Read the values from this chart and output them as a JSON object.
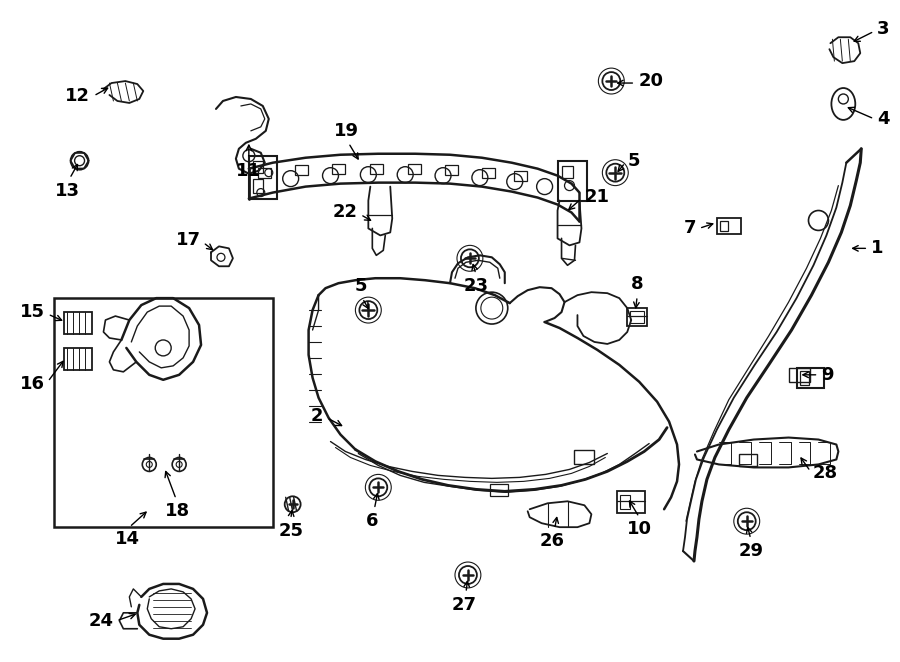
{
  "bg_color": "#ffffff",
  "line_color": "#1a1a1a",
  "font_size": 13,
  "arrow_color": "#000000",
  "label_color": "#000000"
}
